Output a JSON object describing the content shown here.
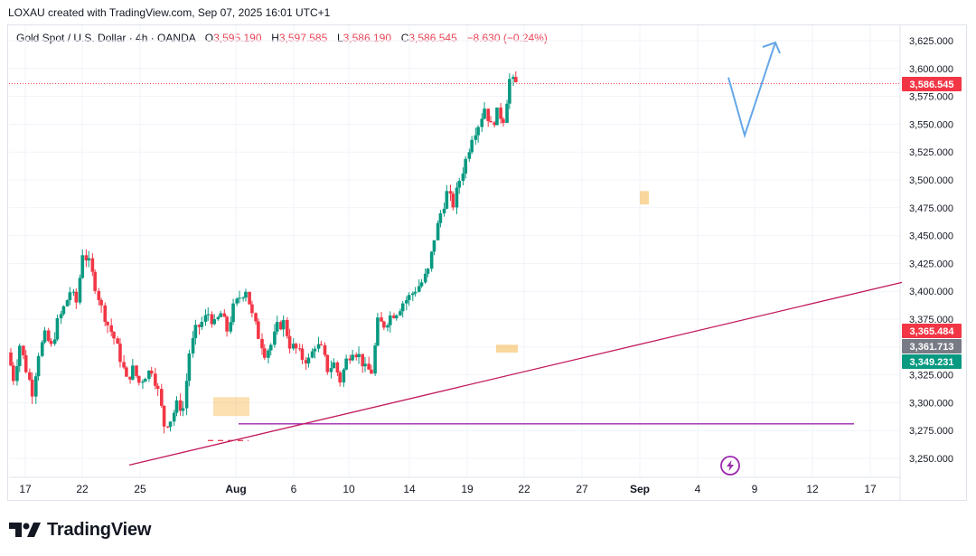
{
  "header": {
    "credit": "LOXAU created with TradingView.com, Sep 07, 2025 16:01 UTC+1"
  },
  "legend": {
    "symbol": "Gold Spot / U.S. Dollar · 4h · OANDA",
    "open_label": "O",
    "open": "3,595.190",
    "high_label": "H",
    "high": "3,597.585",
    "low_label": "L",
    "low": "3,586.190",
    "close_label": "C",
    "close": "3,586.545",
    "change": "−8.630 (−0.24%)"
  },
  "brand": {
    "name": "TradingView"
  },
  "colors": {
    "up": "#089981",
    "down": "#f23645",
    "trend": "#c2185b",
    "projection": "#64a7e8",
    "orange": "#f5a623",
    "grid": "#f0f3fa"
  },
  "chart_data": {
    "type": "candlestick",
    "timeframe": "4h",
    "ylim": [
      3240,
      3640
    ],
    "y_ticks": [
      "3,250.000",
      "3,275.000",
      "3,300.000",
      "3,325.000",
      "3,350.000",
      "3,375.000",
      "3,400.000",
      "3,425.000",
      "3,450.000",
      "3,475.000",
      "3,500.000",
      "3,525.000",
      "3,550.000",
      "3,575.000",
      "3,600.000",
      "3,625.000"
    ],
    "x_ticks": [
      "17",
      "22",
      "25",
      "Aug",
      "6",
      "10",
      "14",
      "19",
      "22",
      "27",
      "Sep",
      "4",
      "9",
      "12",
      "17"
    ],
    "grid": true,
    "price_labels": [
      {
        "value": 3586.545,
        "text": "3,586.545",
        "color": "#f23645"
      },
      {
        "value": 3365.484,
        "text": "3,365.484",
        "color": "#f23645"
      },
      {
        "value": 3361.713,
        "text": "3,361.713",
        "color": "#787b86"
      },
      {
        "value": 3349.231,
        "text": "3,349.231",
        "color": "#089981"
      }
    ],
    "current_price": 3586.545,
    "horizontal_line": {
      "value": 3281,
      "from": "Aug",
      "to": "17"
    },
    "support_trendline": {
      "from": {
        "date": "Jul 24",
        "value": 3244
      },
      "to": {
        "date": "Sep 16",
        "value": 3408
      }
    },
    "projection": [
      {
        "value": 3592
      },
      {
        "value": 3540
      },
      {
        "value": 3630
      }
    ],
    "price_path": [
      3345,
      3322,
      3352,
      3330,
      3310,
      3345,
      3360,
      3350,
      3372,
      3385,
      3400,
      3390,
      3435,
      3425,
      3405,
      3385,
      3370,
      3358,
      3340,
      3320,
      3330,
      3318,
      3325,
      3330,
      3310,
      3280,
      3285,
      3298,
      3295,
      3345,
      3365,
      3372,
      3380,
      3370,
      3380,
      3365,
      3385,
      3395,
      3402,
      3378,
      3360,
      3345,
      3352,
      3368,
      3372,
      3352,
      3348,
      3340,
      3338,
      3352,
      3348,
      3330,
      3335,
      3320,
      3338,
      3348,
      3342,
      3330,
      3328,
      3372,
      3370,
      3378,
      3382,
      3390,
      3395,
      3402,
      3408,
      3418,
      3448,
      3470,
      3488,
      3478,
      3500,
      3518,
      3540,
      3550,
      3565,
      3548,
      3560,
      3555,
      3590,
      3586
    ]
  }
}
